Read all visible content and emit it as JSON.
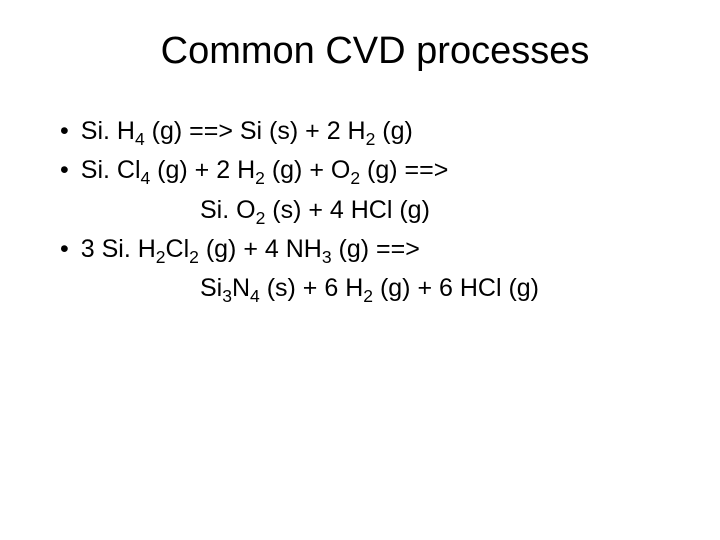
{
  "title": "Common CVD processes",
  "reactions": [
    {
      "bullet": "•",
      "lines": [
        "Si. H<sub>4</sub> (g)  ==> Si (s) + 2 H<sub>2</sub> (g)"
      ]
    },
    {
      "bullet": "•",
      "lines": [
        "Si. Cl<sub>4</sub> (g) + 2 H<sub>2</sub> (g) + O<sub>2</sub> (g)  ==>",
        "Si. O<sub>2</sub> (s) + 4 HCl (g)"
      ]
    },
    {
      "bullet": "•",
      "lines": [
        "3 Si. H<sub>2</sub>Cl<sub>2</sub> (g) + 4 NH<sub>3</sub> (g) ==>",
        "Si<sub>3</sub>N<sub>4</sub> (s) + 6 H<sub>2</sub> (g) + 6 HCl (g)"
      ]
    }
  ],
  "colors": {
    "background": "#ffffff",
    "text": "#000000"
  },
  "typography": {
    "title_fontsize": 38,
    "body_fontsize": 25,
    "font_family": "Arial"
  }
}
